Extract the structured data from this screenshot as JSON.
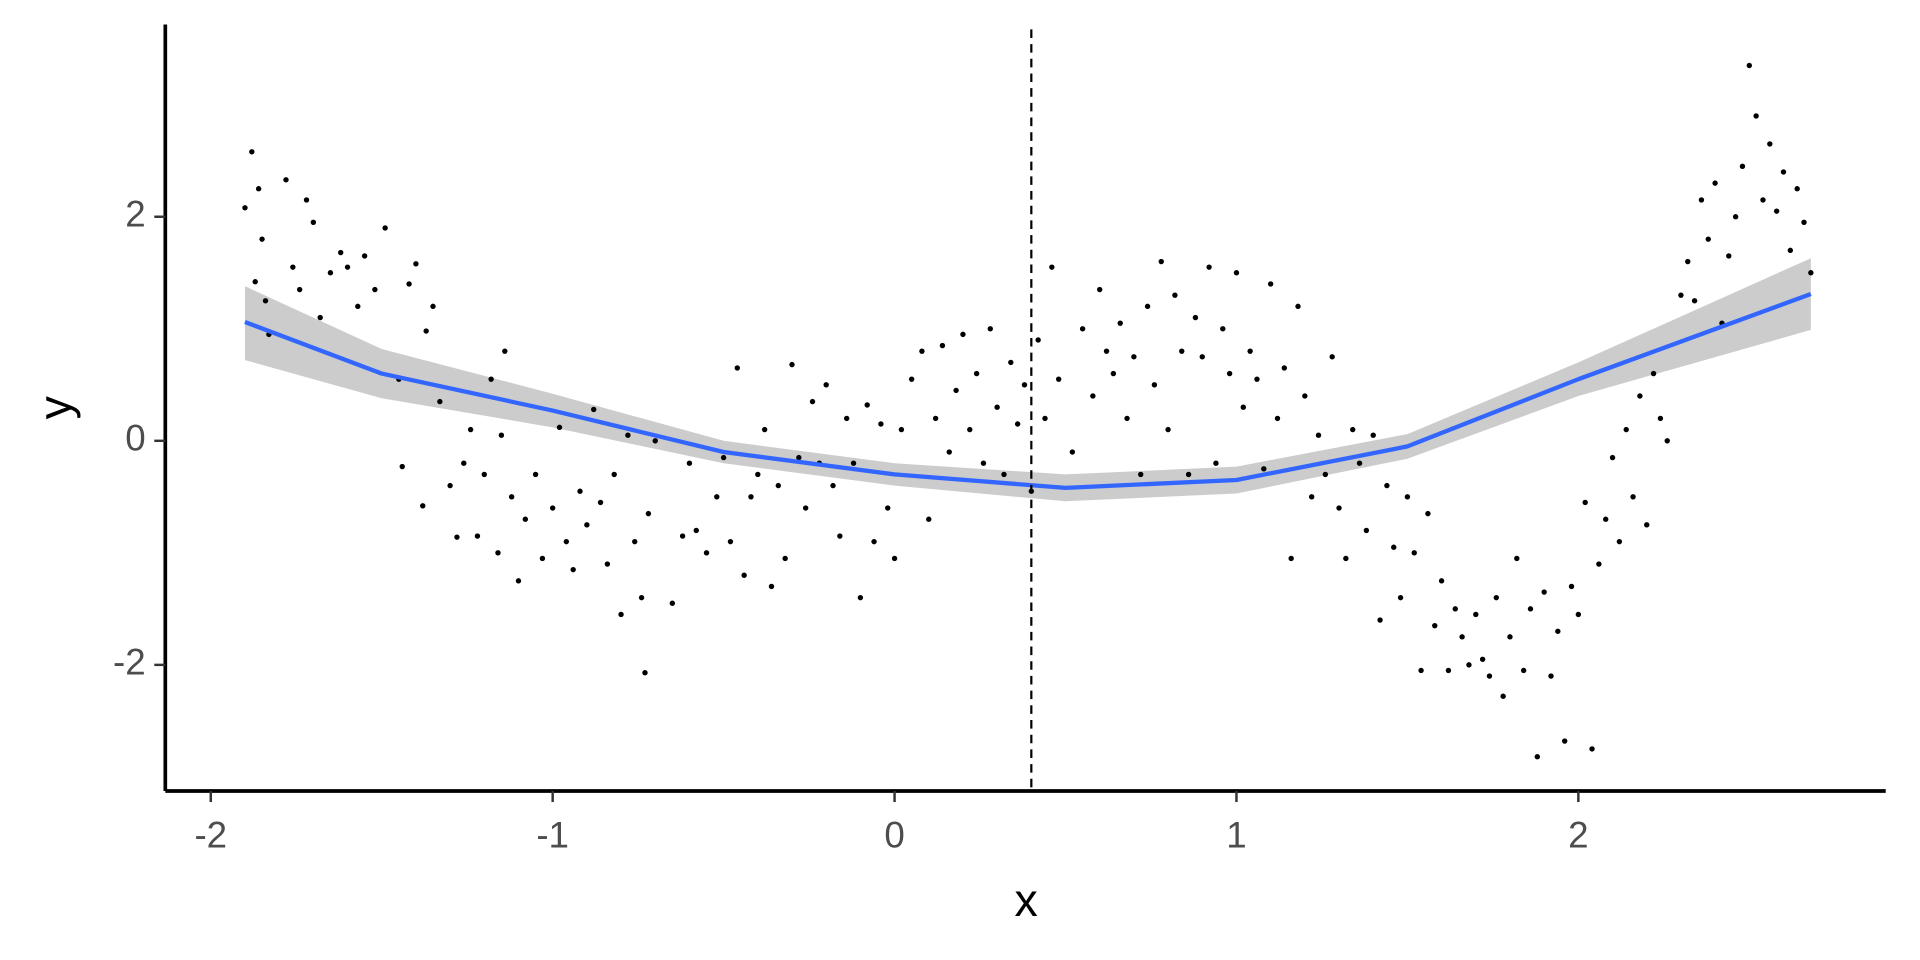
{
  "chart_data": {
    "type": "scatter",
    "x_label": "x",
    "y_label": "y",
    "xlim": [
      -2.133,
      2.899
    ],
    "ylim": [
      -3.126,
      3.716
    ],
    "xticks": [
      -2,
      -1,
      0,
      1,
      2
    ],
    "yticks": [
      -2,
      0,
      2
    ],
    "point_color": "#000000",
    "x": [
      -1.9,
      -1.88,
      -1.87,
      -1.86,
      -1.85,
      -1.84,
      -1.83,
      -1.78,
      -1.76,
      -1.74,
      -1.72,
      -1.7,
      -1.68,
      -1.65,
      -1.62,
      -1.6,
      -1.57,
      -1.55,
      -1.52,
      -1.49,
      -1.45,
      -1.44,
      -1.42,
      -1.4,
      -1.38,
      -1.37,
      -1.35,
      -1.33,
      -1.3,
      -1.28,
      -1.26,
      -1.24,
      -1.22,
      -1.2,
      -1.18,
      -1.16,
      -1.15,
      -1.14,
      -1.12,
      -1.1,
      -1.08,
      -1.05,
      -1.03,
      -1.0,
      -0.98,
      -0.96,
      -0.94,
      -0.92,
      -0.9,
      -0.88,
      -0.86,
      -0.84,
      -0.82,
      -0.8,
      -0.78,
      -0.76,
      -0.74,
      -0.72,
      -0.7,
      -0.73,
      -0.65,
      -0.62,
      -0.6,
      -0.58,
      -0.55,
      -0.52,
      -0.5,
      -0.48,
      -0.46,
      -0.44,
      -0.42,
      -0.4,
      -0.38,
      -0.36,
      -0.34,
      -0.32,
      -0.3,
      -0.28,
      -0.26,
      -0.24,
      -0.22,
      -0.2,
      -0.18,
      -0.16,
      -0.14,
      -0.12,
      -0.1,
      -0.08,
      -0.06,
      -0.04,
      -0.02,
      0.0,
      0.02,
      0.05,
      0.08,
      0.1,
      0.12,
      0.14,
      0.16,
      0.18,
      0.2,
      0.22,
      0.24,
      0.26,
      0.28,
      0.3,
      0.32,
      0.34,
      0.36,
      0.38,
      0.4,
      0.42,
      0.44,
      0.46,
      0.48,
      0.52,
      0.55,
      0.58,
      0.6,
      0.62,
      0.64,
      0.66,
      0.68,
      0.7,
      0.72,
      0.74,
      0.76,
      0.78,
      0.8,
      0.82,
      0.84,
      0.86,
      0.88,
      0.9,
      0.92,
      0.94,
      0.96,
      0.98,
      1.0,
      1.02,
      1.04,
      1.06,
      1.08,
      1.1,
      1.12,
      1.14,
      1.16,
      1.18,
      1.2,
      1.22,
      1.24,
      1.26,
      1.28,
      1.3,
      1.32,
      1.34,
      1.36,
      1.38,
      1.4,
      1.42,
      1.44,
      1.46,
      1.48,
      1.5,
      1.52,
      1.54,
      1.56,
      1.58,
      1.6,
      1.62,
      1.64,
      1.66,
      1.68,
      1.7,
      1.72,
      1.74,
      1.76,
      1.78,
      1.8,
      1.82,
      1.84,
      1.86,
      1.88,
      1.9,
      1.92,
      1.94,
      1.96,
      1.98,
      2.0,
      2.02,
      2.04,
      2.06,
      2.08,
      2.1,
      2.12,
      2.14,
      2.16,
      2.18,
      2.2,
      2.22,
      2.24,
      2.26,
      2.3,
      2.32,
      2.34,
      2.36,
      2.38,
      2.4,
      2.42,
      2.44,
      2.46,
      2.48,
      2.5,
      2.52,
      2.54,
      2.56,
      2.58,
      2.6,
      2.62,
      2.64,
      2.66,
      2.68
    ],
    "y": [
      2.08,
      2.58,
      1.42,
      2.25,
      1.8,
      1.25,
      0.95,
      2.33,
      1.55,
      1.35,
      2.15,
      1.95,
      1.1,
      1.5,
      1.68,
      1.55,
      1.2,
      1.65,
      1.35,
      1.9,
      0.55,
      -0.23,
      1.4,
      1.58,
      -0.58,
      0.98,
      1.2,
      0.35,
      -0.4,
      -0.86,
      -0.2,
      0.1,
      -0.85,
      -0.3,
      0.55,
      -1.0,
      0.05,
      0.8,
      -0.5,
      -1.25,
      -0.7,
      -0.3,
      -1.05,
      -0.6,
      0.12,
      -0.9,
      -1.15,
      -0.45,
      -0.75,
      0.28,
      -0.55,
      -1.1,
      -0.3,
      -1.55,
      0.05,
      -0.9,
      -1.4,
      -0.65,
      0.0,
      -2.07,
      -1.45,
      -0.85,
      -0.2,
      -0.8,
      -1.0,
      -0.5,
      -0.15,
      -0.9,
      0.65,
      -1.2,
      -0.5,
      -0.3,
      0.1,
      -1.3,
      -0.4,
      -1.05,
      0.68,
      -0.15,
      -0.6,
      0.35,
      -0.2,
      0.5,
      -0.4,
      -0.85,
      0.2,
      -0.2,
      -1.4,
      0.32,
      -0.9,
      0.15,
      -0.6,
      -1.05,
      0.1,
      0.55,
      0.8,
      -0.7,
      0.2,
      0.85,
      -0.1,
      0.45,
      0.95,
      0.1,
      0.6,
      -0.2,
      1.0,
      0.3,
      -0.3,
      0.7,
      0.15,
      0.5,
      -0.45,
      0.9,
      0.2,
      1.55,
      0.55,
      -0.1,
      1.0,
      0.4,
      1.35,
      0.8,
      0.6,
      1.05,
      0.2,
      0.75,
      -0.3,
      1.2,
      0.5,
      1.6,
      0.1,
      1.3,
      0.8,
      -0.3,
      1.1,
      0.75,
      1.55,
      -0.2,
      1.0,
      0.6,
      1.5,
      0.3,
      0.8,
      0.55,
      -0.25,
      1.4,
      0.2,
      0.65,
      -1.05,
      1.2,
      0.4,
      -0.5,
      0.05,
      -0.3,
      0.75,
      -0.6,
      -1.05,
      0.1,
      -0.2,
      -0.8,
      0.05,
      -1.6,
      -0.4,
      -0.95,
      -1.4,
      -0.5,
      -1.0,
      -2.05,
      -0.65,
      -1.65,
      -1.25,
      -2.05,
      -1.5,
      -1.75,
      -2.0,
      -1.55,
      -1.95,
      -2.1,
      -1.4,
      -2.28,
      -1.75,
      -1.05,
      -2.05,
      -1.5,
      -2.82,
      -1.35,
      -2.1,
      -1.7,
      -2.68,
      -1.3,
      -1.55,
      -0.55,
      -2.75,
      -1.1,
      -0.7,
      -0.15,
      -0.9,
      0.1,
      -0.5,
      0.4,
      -0.75,
      0.6,
      0.2,
      0.0,
      1.3,
      1.6,
      1.25,
      2.15,
      1.8,
      2.3,
      1.05,
      1.65,
      2.0,
      2.45,
      3.35,
      2.9,
      2.15,
      2.65,
      2.05,
      2.4,
      1.7,
      2.25,
      1.95,
      1.5
    ],
    "fit": {
      "color": "#3366ff",
      "band_color": "#cccccc",
      "x": [
        -1.9,
        -1.5,
        -1.0,
        -0.5,
        0.0,
        0.5,
        1.0,
        1.5,
        2.0,
        2.68
      ],
      "y": [
        1.06,
        0.6,
        0.27,
        -0.1,
        -0.3,
        -0.42,
        -0.35,
        -0.05,
        0.55,
        1.31
      ],
      "lower": [
        0.72,
        0.38,
        0.12,
        -0.2,
        -0.4,
        -0.54,
        -0.47,
        -0.16,
        0.4,
        0.99
      ],
      "upper": [
        1.38,
        0.82,
        0.42,
        0.0,
        -0.2,
        -0.3,
        -0.23,
        0.06,
        0.7,
        1.63
      ]
    },
    "vline": {
      "x": 0.4,
      "color": "#000000"
    }
  }
}
